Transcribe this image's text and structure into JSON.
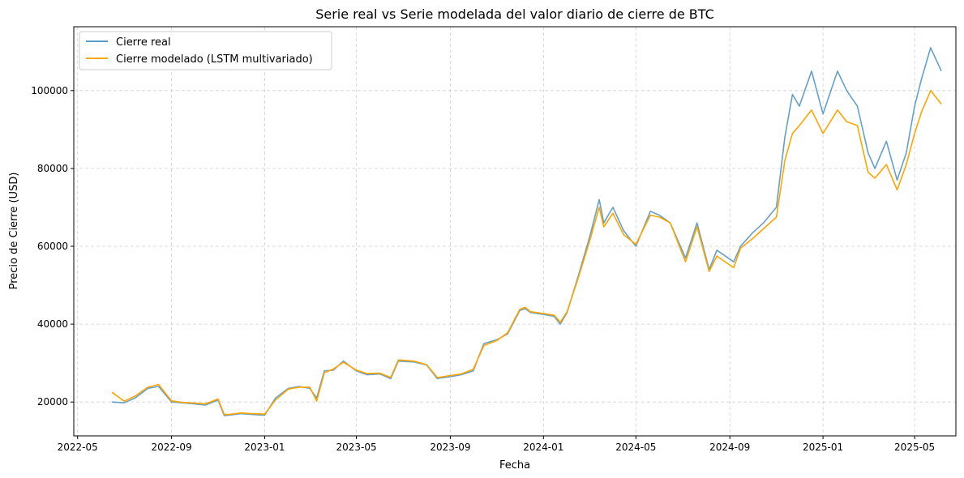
{
  "chart_data": {
    "type": "line",
    "title": "Serie real vs Serie modelada del valor diario de cierre de BTC",
    "xlabel": "Fecha",
    "ylabel": "Precio de Cierre (USD)",
    "x_ticks": [
      "2022-05",
      "2022-09",
      "2023-01",
      "2023-05",
      "2023-09",
      "2024-01",
      "2024-05",
      "2024-09",
      "2025-01",
      "2025-05"
    ],
    "y_ticks": [
      20000,
      40000,
      60000,
      80000,
      100000
    ],
    "xlim": [
      "2022-04-26",
      "2025-06-24"
    ],
    "ylim": [
      11300,
      116400
    ],
    "grid": true,
    "legend_position": "top-left",
    "x": [
      "2022-06-15",
      "2022-07-01",
      "2022-07-15",
      "2022-08-01",
      "2022-08-15",
      "2022-09-01",
      "2022-09-15",
      "2022-10-01",
      "2022-10-15",
      "2022-11-01",
      "2022-11-09",
      "2022-11-15",
      "2022-12-01",
      "2022-12-15",
      "2023-01-01",
      "2023-01-15",
      "2023-02-01",
      "2023-02-15",
      "2023-03-01",
      "2023-03-10",
      "2023-03-20",
      "2023-04-01",
      "2023-04-14",
      "2023-05-01",
      "2023-05-15",
      "2023-06-01",
      "2023-06-15",
      "2023-06-25",
      "2023-07-15",
      "2023-08-01",
      "2023-08-15",
      "2023-08-20",
      "2023-09-01",
      "2023-09-15",
      "2023-10-01",
      "2023-10-15",
      "2023-11-01",
      "2023-11-15",
      "2023-12-01",
      "2023-12-08",
      "2023-12-15",
      "2024-01-01",
      "2024-01-15",
      "2024-01-23",
      "2024-02-01",
      "2024-02-15",
      "2024-03-01",
      "2024-03-14",
      "2024-03-20",
      "2024-04-01",
      "2024-04-15",
      "2024-05-01",
      "2024-05-20",
      "2024-06-01",
      "2024-06-15",
      "2024-07-05",
      "2024-07-20",
      "2024-08-05",
      "2024-08-15",
      "2024-09-06",
      "2024-09-15",
      "2024-10-01",
      "2024-10-15",
      "2024-11-01",
      "2024-11-12",
      "2024-11-22",
      "2024-12-01",
      "2024-12-17",
      "2025-01-01",
      "2025-01-20",
      "2025-02-01",
      "2025-02-15",
      "2025-03-01",
      "2025-03-10",
      "2025-03-25",
      "2025-04-08",
      "2025-04-20",
      "2025-05-01",
      "2025-05-10",
      "2025-05-22",
      "2025-06-05"
    ],
    "series": [
      {
        "name": "Cierre real",
        "color": "#5b9bc8",
        "values": [
          20000,
          19800,
          21000,
          23500,
          24000,
          20000,
          19800,
          19500,
          19200,
          20500,
          16500,
          16600,
          17000,
          16800,
          16600,
          21000,
          23500,
          24000,
          23500,
          21000,
          28000,
          28200,
          30500,
          28000,
          27000,
          27200,
          26000,
          30500,
          30300,
          29500,
          26000,
          26200,
          26500,
          27000,
          28000,
          35000,
          36000,
          37500,
          43500,
          44000,
          43000,
          42500,
          42000,
          40000,
          43000,
          52000,
          62000,
          72000,
          66000,
          70000,
          64000,
          60000,
          69000,
          68000,
          66000,
          57000,
          66000,
          54000,
          59000,
          56000,
          60000,
          63500,
          66000,
          70000,
          88000,
          99000,
          96000,
          105000,
          94000,
          105000,
          100000,
          96000,
          84000,
          80000,
          87000,
          77000,
          84000,
          96000,
          103000,
          111000,
          105000
        ]
      },
      {
        "name": "Cierre modelado (LSTM multivariado)",
        "color": "#ffa500",
        "values": [
          22500,
          20200,
          21500,
          23800,
          24500,
          20300,
          19900,
          19700,
          19500,
          20800,
          16800,
          16800,
          17200,
          17000,
          16900,
          20500,
          23300,
          23800,
          23800,
          20200,
          27500,
          28500,
          30200,
          28200,
          27300,
          27400,
          26300,
          30800,
          30500,
          29600,
          26300,
          26400,
          26800,
          27200,
          28400,
          34500,
          35800,
          37800,
          43800,
          44300,
          43200,
          42700,
          42300,
          40500,
          43200,
          51500,
          61000,
          70000,
          65000,
          68500,
          63000,
          60500,
          68000,
          67500,
          66000,
          56000,
          65000,
          53500,
          57500,
          54500,
          59500,
          62000,
          64500,
          67500,
          82000,
          89000,
          91000,
          95000,
          89000,
          95000,
          92000,
          91000,
          79000,
          77500,
          81000,
          74500,
          81000,
          89000,
          94500,
          100000,
          96500
        ]
      }
    ]
  }
}
